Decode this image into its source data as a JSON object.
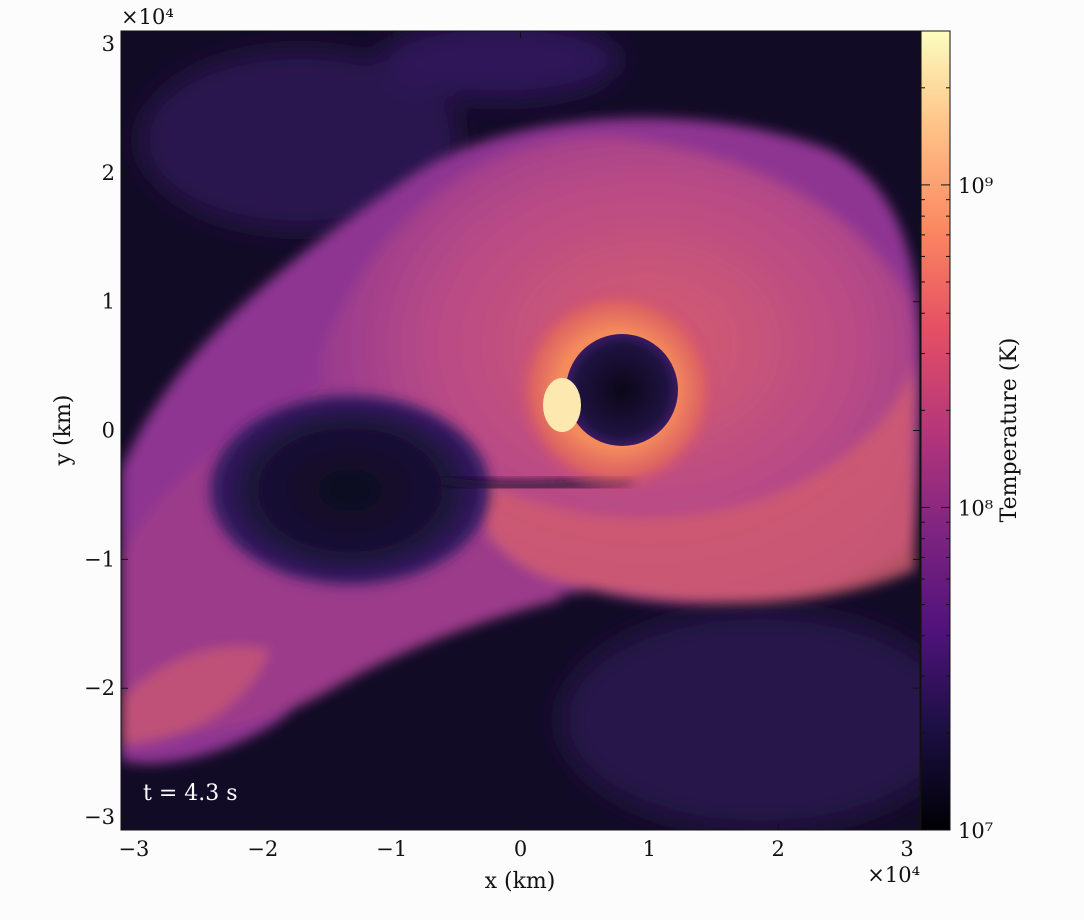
{
  "chart_data": {
    "type": "heatmap",
    "title": "",
    "xlabel": "x  (km)",
    "ylabel": "y  (km)",
    "x_ticks": [
      -3,
      -2,
      -1,
      0,
      1,
      2,
      3
    ],
    "y_ticks": [
      -3,
      -2,
      -1,
      0,
      1,
      2,
      3
    ],
    "x_tick_labels": [
      "−3",
      "−2",
      "−1",
      "0",
      "1",
      "2",
      "3"
    ],
    "y_tick_labels": [
      "−3",
      "−2",
      "−1",
      "0",
      "1",
      "2",
      "3"
    ],
    "x_multiplier": "×10⁴",
    "y_multiplier": "×10⁴",
    "xlim": [
      -3.1,
      3.1
    ],
    "ylim": [
      -3.1,
      3.1
    ],
    "annotation": "t = 4.3 s",
    "colorbar": {
      "label": "Temperature  (K)",
      "scale": "log",
      "range": [
        10000000,
        3000000000
      ],
      "colormap": "magma",
      "ticks": [
        10000000,
        100000000,
        1000000000
      ],
      "tick_labels": [
        "10⁷",
        "10⁸",
        "10⁹"
      ]
    },
    "features": [
      {
        "name": "hot-core",
        "x": 0.3,
        "y": 0.2,
        "temperature": 3000000000
      },
      {
        "name": "cavity",
        "x": 0.9,
        "y": 0.6,
        "temperature": 10000000
      },
      {
        "name": "ring",
        "x": 0.85,
        "y": 0.6,
        "temperature": 500000000
      },
      {
        "name": "cold-pocket",
        "x": -1.4,
        "y": -0.7,
        "temperature": 12000000
      }
    ]
  },
  "colors": {
    "background": "#fbfcfb",
    "magma_dark": "#0b0718",
    "magma_purple": "#3c1d72",
    "magma_magenta": "#a8377a",
    "magma_orange": "#f0805c",
    "magma_light": "#fcfcbe"
  }
}
